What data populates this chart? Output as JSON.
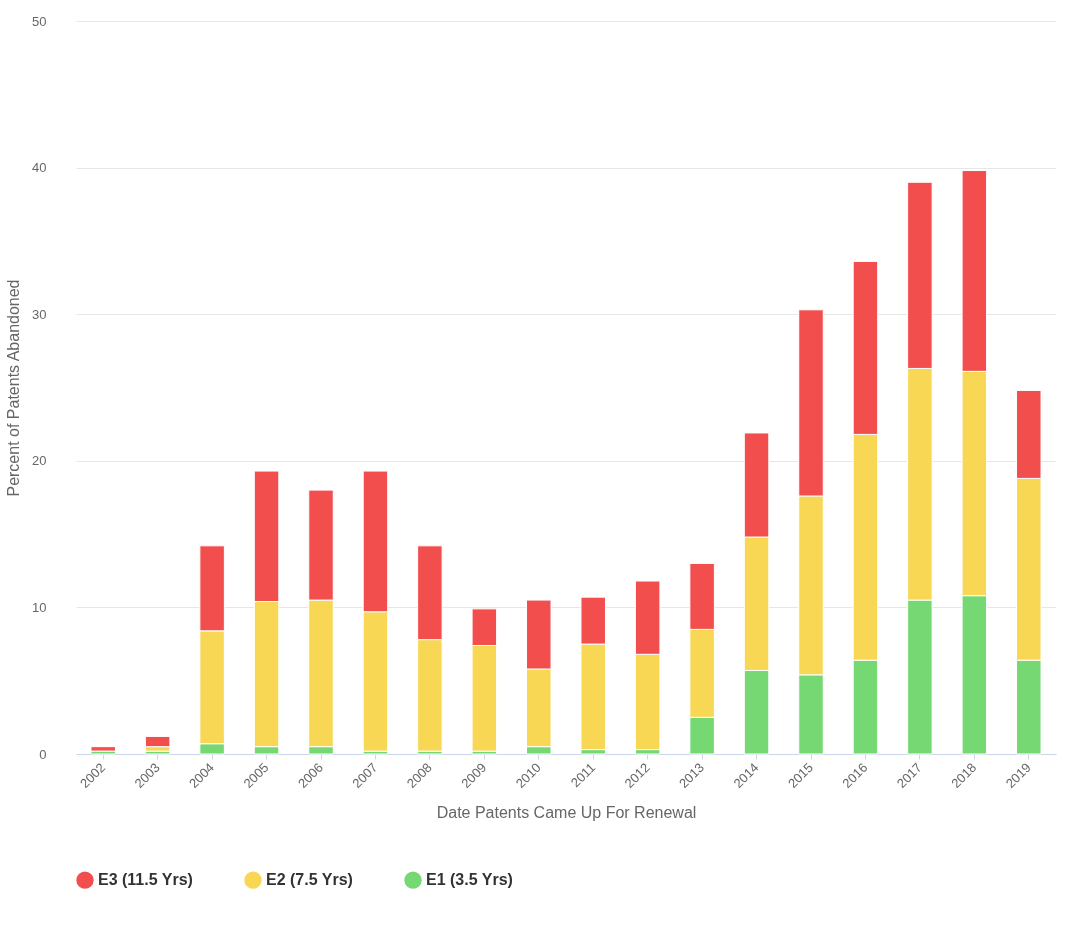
{
  "chart_data": {
    "type": "bar",
    "stacked": true,
    "xlabel": "Date Patents Came Up For Renewal",
    "ylabel": "Percent of Patents Abandoned",
    "categories": [
      "2002",
      "2003",
      "2004",
      "2005",
      "2006",
      "2007",
      "2008",
      "2009",
      "2010",
      "2011",
      "2012",
      "2013",
      "2014",
      "2015",
      "2016",
      "2017",
      "2018",
      "2019"
    ],
    "series": [
      {
        "name": "E1 (3.5 Yrs)",
        "color": "#76d873",
        "values": [
          0.2,
          0.2,
          0.7,
          0.5,
          0.5,
          0.2,
          0.2,
          0.2,
          0.5,
          0.3,
          0.3,
          2.5,
          5.7,
          5.4,
          6.4,
          10.5,
          10.8,
          6.4
        ]
      },
      {
        "name": "E2 (7.5 Yrs)",
        "color": "#f8d755",
        "values": [
          null,
          0.3,
          7.7,
          9.9,
          10.0,
          9.5,
          7.6,
          7.2,
          5.3,
          7.2,
          6.5,
          6.0,
          9.1,
          12.2,
          15.4,
          15.8,
          15.3,
          12.4
        ]
      },
      {
        "name": "E3 (11.5 Yrs)",
        "color": "#f24e4e",
        "values": [
          0.3,
          0.7,
          5.8,
          8.9,
          7.5,
          9.6,
          6.4,
          2.5,
          4.7,
          3.2,
          5.0,
          4.5,
          7.1,
          12.7,
          11.8,
          12.7,
          13.7,
          6.0
        ]
      }
    ],
    "ylim": [
      0,
      50
    ],
    "yticks": [
      0,
      10,
      20,
      30,
      40,
      50
    ],
    "grid": "y",
    "legend": "bottom"
  }
}
